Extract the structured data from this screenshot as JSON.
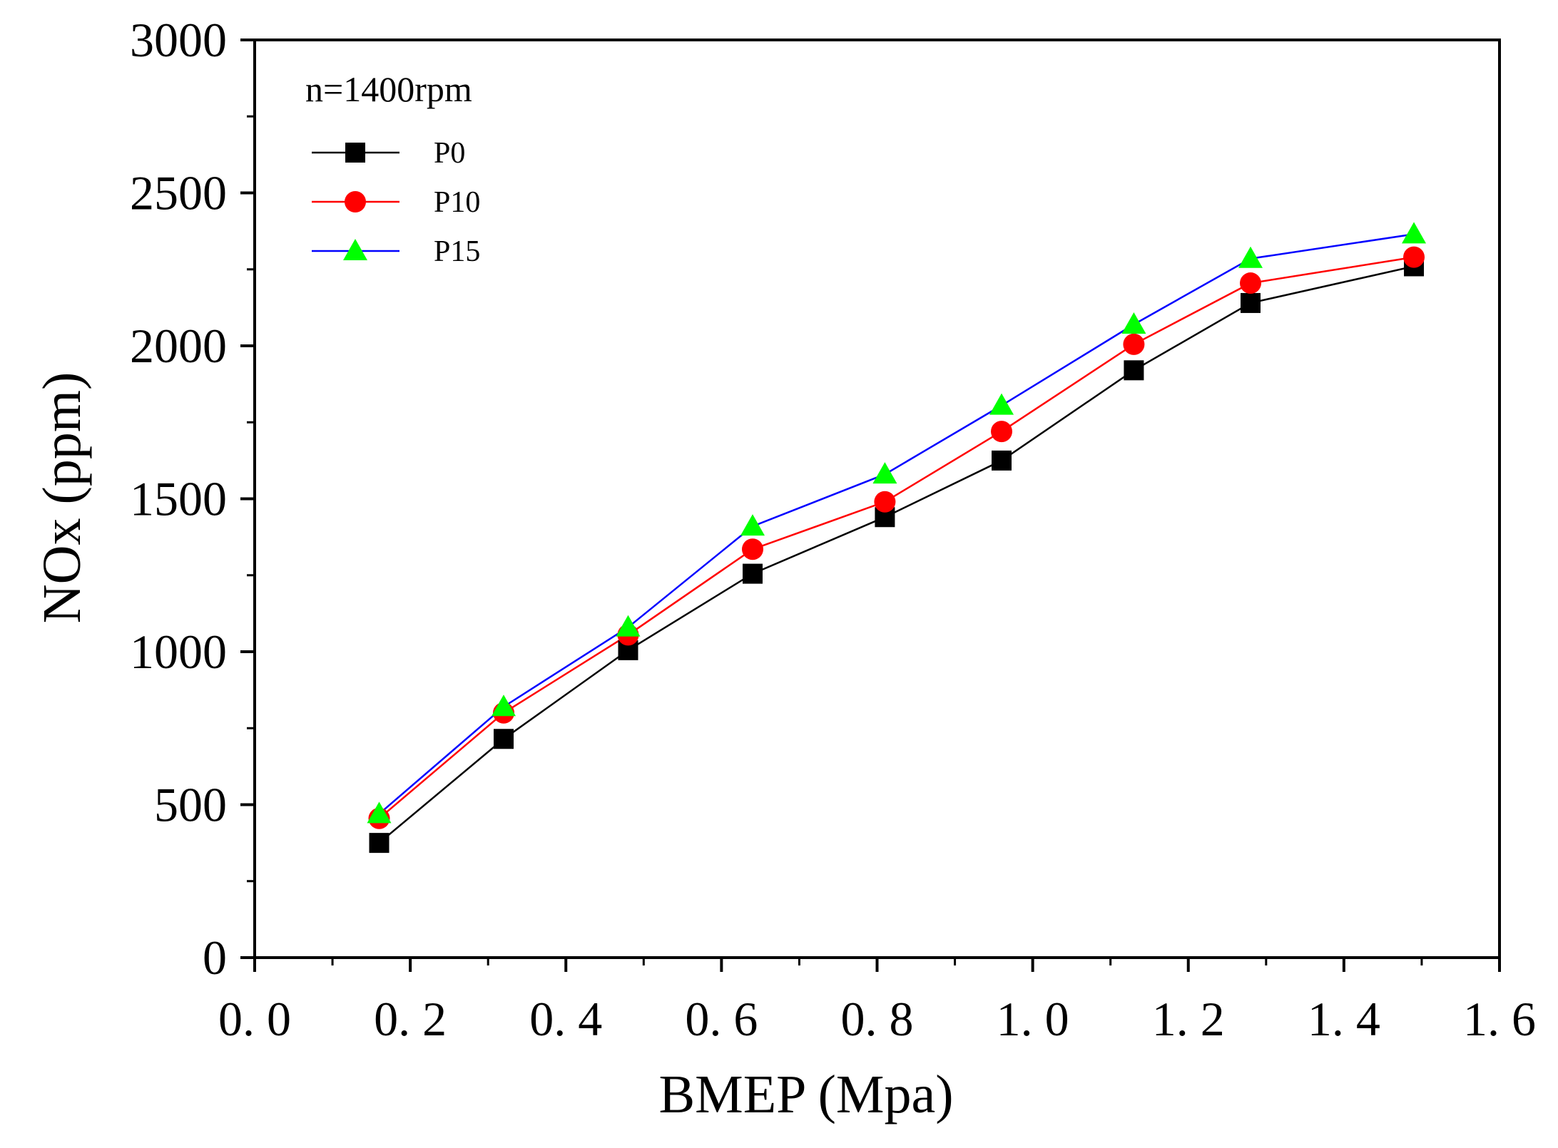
{
  "chart_data": {
    "type": "line",
    "title": "",
    "annotation": "n=1400rpm",
    "xlabel": "BMEP (Mpa)",
    "ylabel": "NOx (ppm)",
    "xlim": [
      0.0,
      1.6
    ],
    "ylim": [
      0,
      3000
    ],
    "xticks": [
      0.0,
      0.2,
      0.4,
      0.6,
      0.8,
      1.0,
      1.2,
      1.4,
      1.6
    ],
    "xtick_labels": [
      "0. 0",
      "0. 2",
      "0. 4",
      "0. 6",
      "0. 8",
      "1. 0",
      "1. 2",
      "1. 4",
      "1. 6"
    ],
    "yticks": [
      0,
      500,
      1000,
      1500,
      2000,
      2500,
      3000
    ],
    "ytick_labels": [
      "0",
      "500",
      "1000",
      "1500",
      "2000",
      "2500",
      "3000"
    ],
    "grid": false,
    "legend_position": "top-left",
    "x": [
      0.16,
      0.32,
      0.48,
      0.64,
      0.81,
      0.96,
      1.13,
      1.28,
      1.49
    ],
    "series": [
      {
        "name": "P0",
        "marker": "square",
        "line_color": "#000000",
        "marker_color": "#000000",
        "values": [
          375,
          715,
          1005,
          1255,
          1440,
          1625,
          1920,
          2140,
          2260
        ]
      },
      {
        "name": "P10",
        "marker": "circle",
        "line_color": "#ff0000",
        "marker_color": "#ff0000",
        "values": [
          455,
          800,
          1055,
          1335,
          1490,
          1720,
          2005,
          2205,
          2290
        ]
      },
      {
        "name": "P15",
        "marker": "triangle",
        "line_color": "#0000ff",
        "marker_color": "#00ff00",
        "values": [
          470,
          820,
          1080,
          1410,
          1580,
          1805,
          2070,
          2285,
          2365
        ]
      }
    ]
  }
}
